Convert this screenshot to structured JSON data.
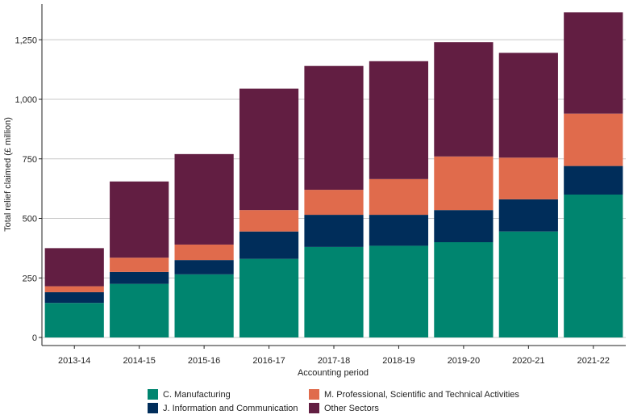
{
  "chart_data": {
    "type": "bar",
    "stacked": true,
    "title": "",
    "xlabel": "Accounting period",
    "ylabel": "Total relief claimed (£ million)",
    "ylim": [
      0,
      1400
    ],
    "yticks": [
      0,
      250,
      500,
      750,
      1000,
      1250
    ],
    "ytick_labels": [
      "0",
      "250",
      "500",
      "750",
      "1,000",
      "1,250"
    ],
    "grid": "horizontal",
    "legend_position": "bottom",
    "categories": [
      "2013-14",
      "2014-15",
      "2015-16",
      "2016-17",
      "2017-18",
      "2018-19",
      "2019-20",
      "2020-21",
      "2021-22"
    ],
    "series": [
      {
        "name": "C. Manufacturing",
        "color": "#00856f",
        "values": [
          145,
          225,
          265,
          330,
          380,
          385,
          400,
          445,
          600
        ]
      },
      {
        "name": "J. Information and Communication",
        "color": "#002d5a",
        "values": [
          45,
          50,
          60,
          115,
          135,
          130,
          135,
          135,
          120
        ]
      },
      {
        "name": "M. Professional, Scientific and Technical Activities",
        "color": "#e06b4c",
        "values": [
          25,
          60,
          65,
          90,
          105,
          150,
          225,
          175,
          220
        ]
      },
      {
        "name": "Other Sectors",
        "color": "#621e42",
        "values": [
          160,
          320,
          380,
          510,
          520,
          495,
          480,
          440,
          425
        ]
      }
    ]
  }
}
